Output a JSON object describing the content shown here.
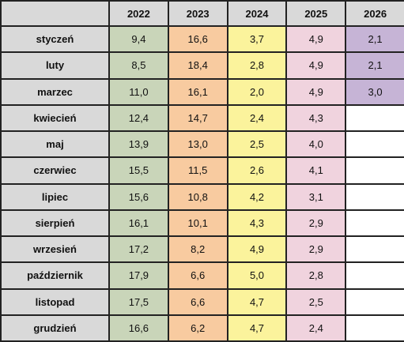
{
  "table": {
    "headers": [
      "",
      "2022",
      "2023",
      "2024",
      "2025",
      "2026"
    ],
    "rows": [
      {
        "month": "styczeń",
        "values": [
          "9,4",
          "16,6",
          "3,7",
          "4,9",
          "2,1"
        ]
      },
      {
        "month": "luty",
        "values": [
          "8,5",
          "18,4",
          "2,8",
          "4,9",
          "2,1"
        ]
      },
      {
        "month": "marzec",
        "values": [
          "11,0",
          "16,1",
          "2,0",
          "4,9",
          "3,0"
        ]
      },
      {
        "month": "kwiecień",
        "values": [
          "12,4",
          "14,7",
          "2,4",
          "4,3",
          ""
        ]
      },
      {
        "month": "maj",
        "values": [
          "13,9",
          "13,0",
          "2,5",
          "4,0",
          ""
        ]
      },
      {
        "month": "czerwiec",
        "values": [
          "15,5",
          "11,5",
          "2,6",
          "4,1",
          ""
        ]
      },
      {
        "month": "lipiec",
        "values": [
          "15,6",
          "10,8",
          "4,2",
          "3,1",
          ""
        ]
      },
      {
        "month": "sierpień",
        "values": [
          "16,1",
          "10,1",
          "4,3",
          "2,9",
          ""
        ]
      },
      {
        "month": "wrzesień",
        "values": [
          "17,2",
          "8,2",
          "4,9",
          "2,9",
          ""
        ]
      },
      {
        "month": "październik",
        "values": [
          "17,9",
          "6,6",
          "5,0",
          "2,8",
          ""
        ]
      },
      {
        "month": "listopad",
        "values": [
          "17,5",
          "6,6",
          "4,7",
          "2,5",
          ""
        ]
      },
      {
        "month": "grudzień",
        "values": [
          "16,6",
          "6,2",
          "4,7",
          "2,4",
          ""
        ]
      }
    ]
  },
  "colors": {
    "header_bg": "#d9d9d9",
    "col_2022": "#c9d5b9",
    "col_2023": "#f8cba0",
    "col_2024": "#fbf39c",
    "col_2025": "#f0d3de",
    "col_2026": "#c6b4d6"
  }
}
